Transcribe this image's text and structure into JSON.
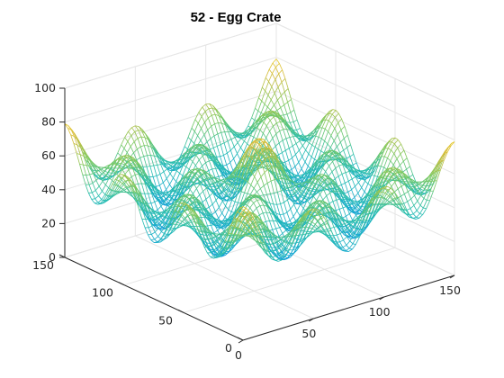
{
  "chart_data": {
    "type": "surface-mesh",
    "title": "52 - Egg Crate",
    "xlabel": "",
    "ylabel": "",
    "zlabel": "",
    "x_range": [
      0,
      150
    ],
    "y_range": [
      0,
      150
    ],
    "z_range": [
      0,
      100
    ],
    "x_ticks": [
      "0",
      "50",
      "100",
      "150"
    ],
    "y_ticks": [
      "0",
      "50",
      "100",
      "150"
    ],
    "z_ticks": [
      "0",
      "20",
      "40",
      "60",
      "80",
      "100"
    ],
    "grid": true,
    "colormap": "parula",
    "colormap_stops": [
      "#3e26a8",
      "#1f6fef",
      "#12a3d8",
      "#26bdb0",
      "#7cc95f",
      "#d4bb3a",
      "#f9d927",
      "#f9fb0e"
    ],
    "axis_color": "#262626",
    "grid_color": "#e6e6e6",
    "surface": {
      "function": "egg crate",
      "notes": "Surface z over x,y in [0,150]; four peaks per side along edges, peak ~95 near center-back, troughs near 0"
    }
  }
}
